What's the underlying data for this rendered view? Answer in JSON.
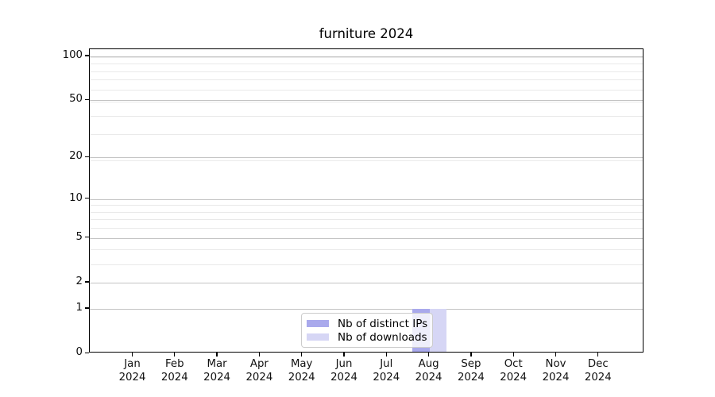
{
  "chart_data": {
    "type": "bar",
    "title": "furniture 2024",
    "xlabel": "",
    "ylabel": "",
    "categories": [
      "Jan",
      "Feb",
      "Mar",
      "Apr",
      "May",
      "Jun",
      "Jul",
      "Aug",
      "Sep",
      "Oct",
      "Nov",
      "Dec"
    ],
    "category_year": "2024",
    "series": [
      {
        "name": "Nb of distinct IPs",
        "key": "distinct-ips",
        "color": "#a9a9ec",
        "values": [
          0,
          0,
          0,
          0,
          0,
          0,
          0,
          1,
          0,
          0,
          0,
          0
        ]
      },
      {
        "name": "Nb of downloads",
        "key": "downloads",
        "color": "#d6d6f5",
        "values": [
          0,
          0,
          0,
          0,
          0,
          0,
          0,
          1,
          0,
          0,
          0,
          0
        ]
      }
    ],
    "y_axis": {
      "scale": "log1p",
      "ymin": 0,
      "ymax": 111.5,
      "tick_labels": [
        100,
        50,
        20,
        10,
        5,
        2,
        1,
        0
      ],
      "major_gridline_values": [
        1,
        2,
        5,
        10,
        20,
        50,
        100
      ],
      "minor_gridline_values": [
        3,
        4,
        6,
        7,
        8,
        9,
        19,
        29,
        39,
        49,
        59,
        69,
        79,
        89,
        99
      ]
    },
    "grid": true,
    "legend": {
      "position": "lower center",
      "entries": [
        "Nb of distinct IPs",
        "Nb of downloads"
      ]
    }
  },
  "colors": {
    "background": "#ffffff",
    "spine": "#000000",
    "major_grid": "#c3c3c3",
    "minor_grid": "#e9e9e9",
    "text": "#111111",
    "legend_border": "#cccccc",
    "legend_background": "rgba(255,255,255,0.8)"
  }
}
